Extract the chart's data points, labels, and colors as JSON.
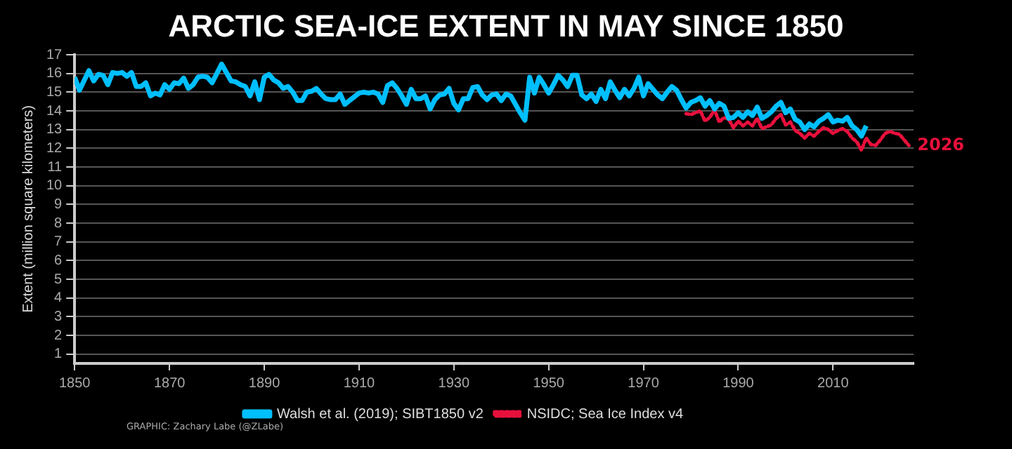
{
  "chart_data": {
    "type": "line",
    "title": "ARCTIC SEA-ICE EXTENT IN MAY SINCE 1850",
    "ylabel": "Extent (million square kilometers)",
    "xlim": [
      1850,
      2027
    ],
    "xticks": [
      1850,
      1870,
      1890,
      1910,
      1930,
      1950,
      1970,
      1990,
      2010
    ],
    "ylim": [
      0.5,
      17
    ],
    "yticks": [
      1,
      2,
      3,
      4,
      5,
      6,
      7,
      8,
      9,
      10,
      11,
      12,
      13,
      14,
      15,
      16,
      17
    ],
    "grid": "y",
    "legend": "bottom",
    "annotations": [
      {
        "text": "2026",
        "x": 2026,
        "y": 12.15
      },
      "GRAPHIC: Zachary Labe (@ZLabe)"
    ],
    "series": [
      {
        "name": "Walsh et al. (2019); SIBT1850 v2",
        "color": "#00bfff",
        "line_style": "solid",
        "x": [
          1850,
          1851,
          1853,
          1854,
          1855,
          1856,
          1857,
          1858,
          1859,
          1860,
          1861,
          1862,
          1863,
          1864,
          1865,
          1866,
          1867,
          1868,
          1869,
          1870,
          1871,
          1872,
          1873,
          1874,
          1875,
          1876,
          1877,
          1878,
          1879,
          1881,
          1882,
          1883,
          1884,
          1885,
          1886,
          1887,
          1888,
          1889,
          1890,
          1891,
          1892,
          1893,
          1894,
          1895,
          1896,
          1897,
          1898,
          1899,
          1900,
          1901,
          1902,
          1903,
          1904,
          1905,
          1906,
          1907,
          1908,
          1909,
          1910,
          1911,
          1912,
          1913,
          1914,
          1915,
          1916,
          1917,
          1918,
          1919,
          1920,
          1921,
          1922,
          1923,
          1924,
          1925,
          1926,
          1927,
          1928,
          1929,
          1930,
          1931,
          1932,
          1933,
          1934,
          1935,
          1936,
          1937,
          1938,
          1939,
          1940,
          1941,
          1942,
          1943,
          1944,
          1945,
          1946,
          1947,
          1948,
          1949,
          1950,
          1951,
          1952,
          1953,
          1954,
          1955,
          1956,
          1957,
          1958,
          1959,
          1960,
          1961,
          1962,
          1963,
          1964,
          1965,
          1966,
          1967,
          1968,
          1969,
          1970,
          1971,
          1972,
          1973,
          1974,
          1975,
          1976,
          1977,
          1978,
          1979,
          1980,
          1981,
          1982,
          1983,
          1984,
          1985,
          1986,
          1987,
          1988,
          1989,
          1990,
          1991,
          1992,
          1993,
          1994,
          1995,
          1996,
          1997,
          1998,
          1999,
          2000,
          2001,
          2002,
          2003,
          2004,
          2005,
          2006,
          2007,
          2008,
          2009,
          2010,
          2011,
          2012,
          2013,
          2014,
          2015,
          2016,
          2017
        ],
        "values": [
          15.8,
          15.1,
          16.15,
          15.6,
          15.95,
          15.9,
          15.4,
          16.05,
          16.0,
          16.05,
          15.85,
          16.05,
          15.3,
          15.3,
          15.5,
          14.8,
          14.95,
          14.85,
          15.4,
          15.15,
          15.5,
          15.45,
          15.75,
          15.2,
          15.4,
          15.8,
          15.85,
          15.8,
          15.5,
          16.5,
          16.05,
          15.6,
          15.55,
          15.4,
          15.3,
          14.8,
          15.55,
          14.6,
          15.8,
          15.95,
          15.65,
          15.5,
          15.2,
          15.3,
          15.0,
          14.55,
          14.55,
          15.0,
          15.05,
          15.2,
          14.9,
          14.65,
          14.6,
          14.6,
          14.9,
          14.35,
          14.55,
          14.75,
          14.95,
          15.0,
          14.95,
          15.0,
          14.9,
          14.45,
          15.35,
          15.5,
          15.2,
          14.8,
          14.35,
          15.15,
          14.65,
          14.65,
          14.8,
          14.1,
          14.6,
          14.85,
          14.9,
          15.2,
          14.4,
          14.05,
          14.65,
          14.65,
          15.25,
          15.3,
          14.85,
          14.6,
          14.85,
          14.9,
          14.55,
          14.9,
          14.8,
          14.35,
          13.9,
          13.5,
          15.8,
          14.95,
          15.8,
          15.4,
          14.95,
          15.4,
          15.9,
          15.65,
          15.3,
          15.9,
          15.9,
          14.85,
          14.65,
          14.9,
          14.5,
          15.15,
          14.65,
          15.55,
          15.1,
          14.7,
          15.15,
          14.8,
          15.2,
          15.8,
          14.8,
          15.45,
          15.15,
          14.85,
          14.65,
          15.0,
          15.3,
          15.1,
          14.6,
          14.15,
          14.45,
          14.55,
          14.7,
          14.25,
          14.55,
          14.1,
          14.4,
          14.25,
          13.6,
          13.65,
          13.9,
          13.65,
          13.95,
          13.75,
          14.2,
          13.6,
          13.75,
          13.95,
          14.25,
          14.45,
          13.9,
          14.1,
          13.55,
          13.4,
          13.0,
          13.3,
          13.15,
          13.45,
          13.6,
          13.8,
          13.4,
          13.5,
          13.45,
          13.65,
          13.2,
          13.0,
          12.65,
          13.2
        ]
      },
      {
        "name": "NSIDC; Sea Ice Index v4",
        "color": "#e8103c",
        "line_style": "dotted",
        "x": [
          1979,
          1980,
          1981,
          1982,
          1983,
          1984,
          1985,
          1986,
          1987,
          1988,
          1989,
          1990,
          1991,
          1992,
          1993,
          1994,
          1995,
          1996,
          1997,
          1998,
          1999,
          2000,
          2001,
          2002,
          2003,
          2004,
          2005,
          2006,
          2007,
          2008,
          2009,
          2010,
          2011,
          2012,
          2013,
          2014,
          2015,
          2016,
          2017,
          2018,
          2019,
          2020,
          2021,
          2022,
          2023,
          2024,
          2025,
          2026
        ],
        "values": [
          13.85,
          13.8,
          13.9,
          14.0,
          13.45,
          13.65,
          14.05,
          13.4,
          13.65,
          13.55,
          13.1,
          13.45,
          13.2,
          13.4,
          13.2,
          13.6,
          13.05,
          13.15,
          13.25,
          13.6,
          13.8,
          13.25,
          13.4,
          12.95,
          12.8,
          12.55,
          12.8,
          12.65,
          12.9,
          13.1,
          13.0,
          12.8,
          12.95,
          13.05,
          12.9,
          12.55,
          12.35,
          11.9,
          12.55,
          12.2,
          12.15,
          12.45,
          12.8,
          12.9,
          12.8,
          12.75,
          12.45,
          12.15
        ]
      }
    ]
  }
}
